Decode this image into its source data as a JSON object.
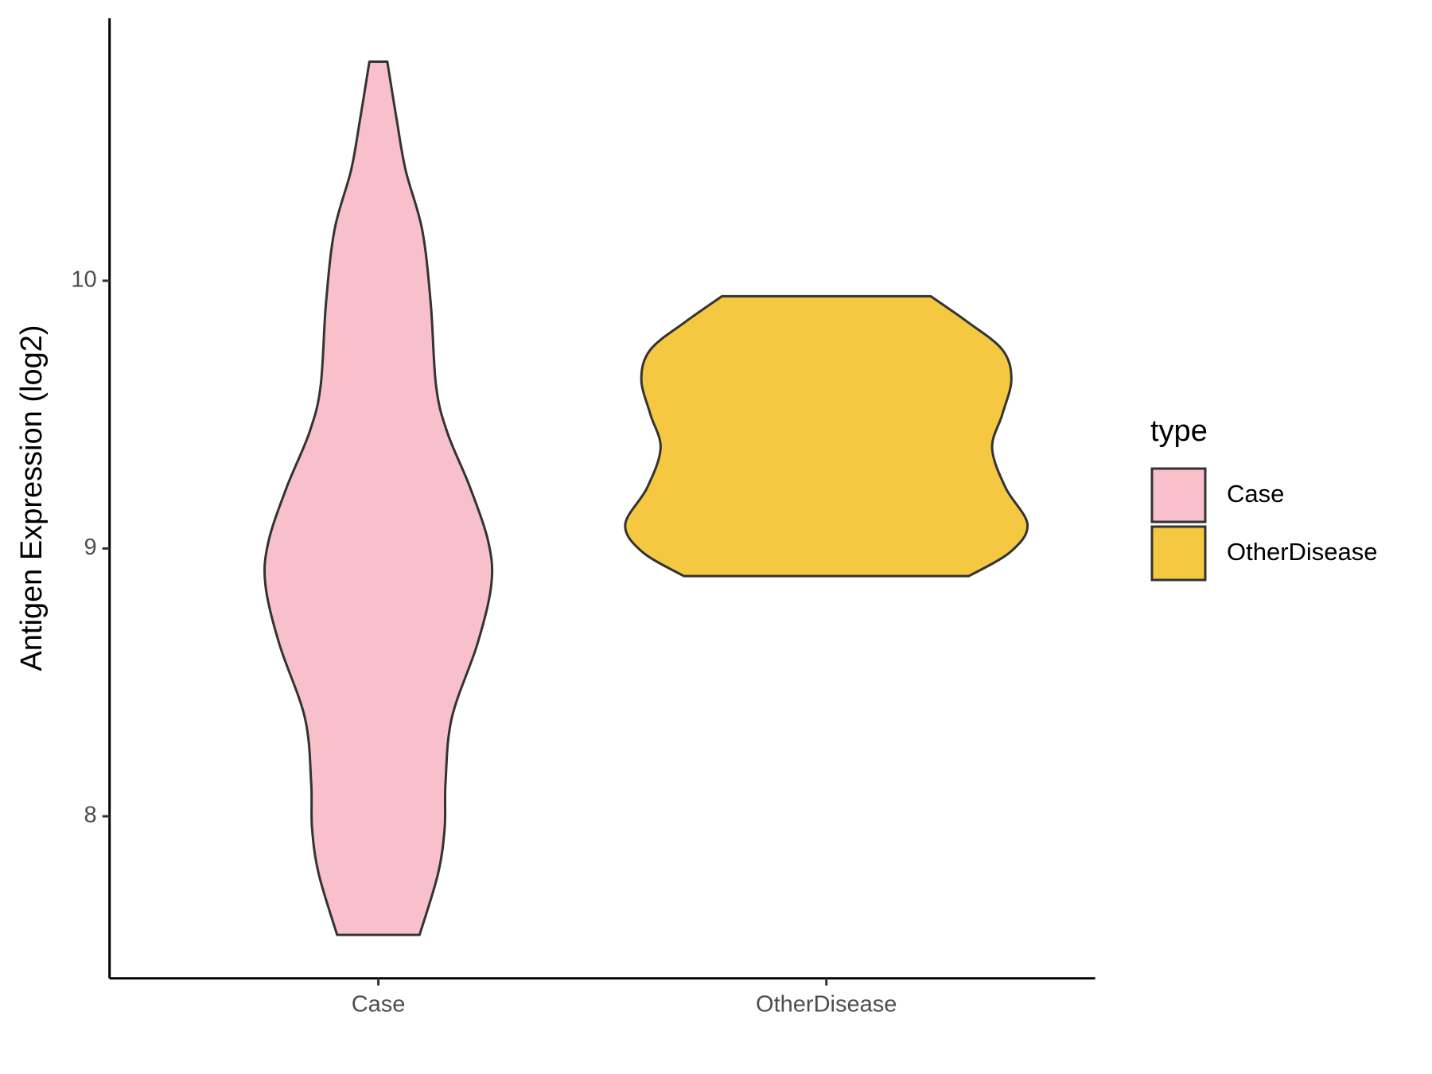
{
  "chart_data": {
    "type": "violin",
    "y_label": "Antigen Expression (log2)",
    "categories": [
      "Case",
      "OtherDisease"
    ],
    "ylim": [
      7.395,
      10.98
    ],
    "yticks": [
      8,
      9,
      10
    ],
    "legend_title": "type",
    "legend_position": "right",
    "series": [
      {
        "name": "Case",
        "color": "#f7c0cb",
        "density": {
          "y": [
            10.818,
            10.601,
            10.412,
            10.189,
            9.914,
            9.605,
            9.433,
            9.227,
            9.021,
            8.863,
            8.643,
            8.368,
            8.127,
            7.955,
            7.784,
            7.557
          ],
          "width": [
            0.02,
            0.041,
            0.061,
            0.098,
            0.117,
            0.129,
            0.154,
            0.205,
            0.246,
            0.252,
            0.221,
            0.164,
            0.15,
            0.148,
            0.133,
            0.092
          ]
        }
      },
      {
        "name": "OtherDisease",
        "color": "#f5c842",
        "density": {
          "y": [
            9.942,
            9.845,
            9.742,
            9.632,
            9.502,
            9.375,
            9.227,
            9.089,
            8.986,
            8.897
          ],
          "width": [
            0.233,
            0.316,
            0.393,
            0.413,
            0.393,
            0.37,
            0.4,
            0.449,
            0.41,
            0.318
          ]
        }
      }
    ]
  }
}
